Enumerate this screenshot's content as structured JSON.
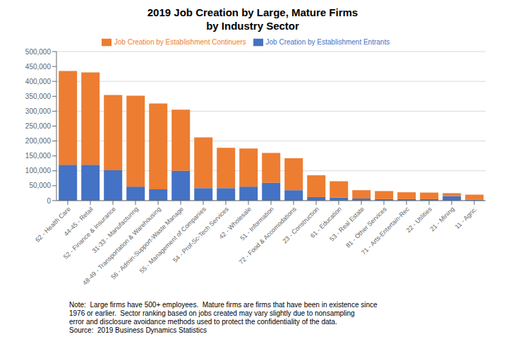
{
  "chart_data": {
    "type": "bar",
    "stacked": true,
    "title": "2019 Job Creation by Large, Mature Firms",
    "subtitle": "by Industry Sector",
    "categories": [
      "62 - Health Care",
      "44-45 - Retail",
      "52 - Finance & Insurance",
      "31-33 - Manufacturing",
      "48-49 - Transportation & Warehousing",
      "56 - Admin-Support-Waste Manage",
      "55 - Management of Companies",
      "54 - Prof-Sc-Tech Services",
      "42 - Wholesale",
      "51 - Information",
      "72 - Food & Accomodations",
      "23 - Construction",
      "61 - Education",
      "53 - Real Estate",
      "81 - Other Services",
      "71 - Arts-Entertain-Rec",
      "22 - Utilities",
      "21 - Mining",
      "11 - Agric."
    ],
    "series": [
      {
        "name": "Job Creation by Establishment Entrants",
        "color": "#4472c4",
        "values": [
          120000,
          120000,
          102000,
          47000,
          38000,
          100000,
          42000,
          42000,
          47000,
          60000,
          35000,
          12000,
          10000,
          7000,
          5000,
          5000,
          5000,
          15000,
          3000
        ]
      },
      {
        "name": "Job Creation by Establishment Continuers",
        "color": "#ed7d31",
        "values": [
          315000,
          310000,
          252000,
          305000,
          288000,
          205000,
          170000,
          135000,
          128000,
          100000,
          107000,
          73000,
          55000,
          28000,
          27000,
          23000,
          22000,
          10000,
          17000
        ]
      }
    ],
    "ylim": [
      0,
      500000
    ],
    "yticks": [
      0,
      {
        "value": 50000,
        "label": "50,000"
      },
      {
        "value": 100000,
        "label": "100,000"
      },
      {
        "value": 150000,
        "label": "150,000"
      },
      {
        "value": 200000,
        "label": "200,000"
      },
      {
        "value": 250000,
        "label": "250,000"
      },
      {
        "value": 300000,
        "label": "300,000"
      },
      {
        "value": 350000,
        "label": "350,000"
      },
      {
        "value": 400000,
        "label": "400,000"
      },
      {
        "value": 450000,
        "label": "450,000"
      },
      {
        "value": 500000,
        "label": "500,000"
      }
    ],
    "grid": true,
    "legend": "top",
    "annotations": [
      "Note:  Large firms have 500+ employees.  Mature firms are firms that have been in existence since\n1976 or earlier.  Sector ranking based on jobs created may vary slightly due to nonsampling\nerror and disclosure avoidance methods used to protect the confidentiality of the data.\nSource:  2019 Business Dynamics Statistics"
    ]
  }
}
